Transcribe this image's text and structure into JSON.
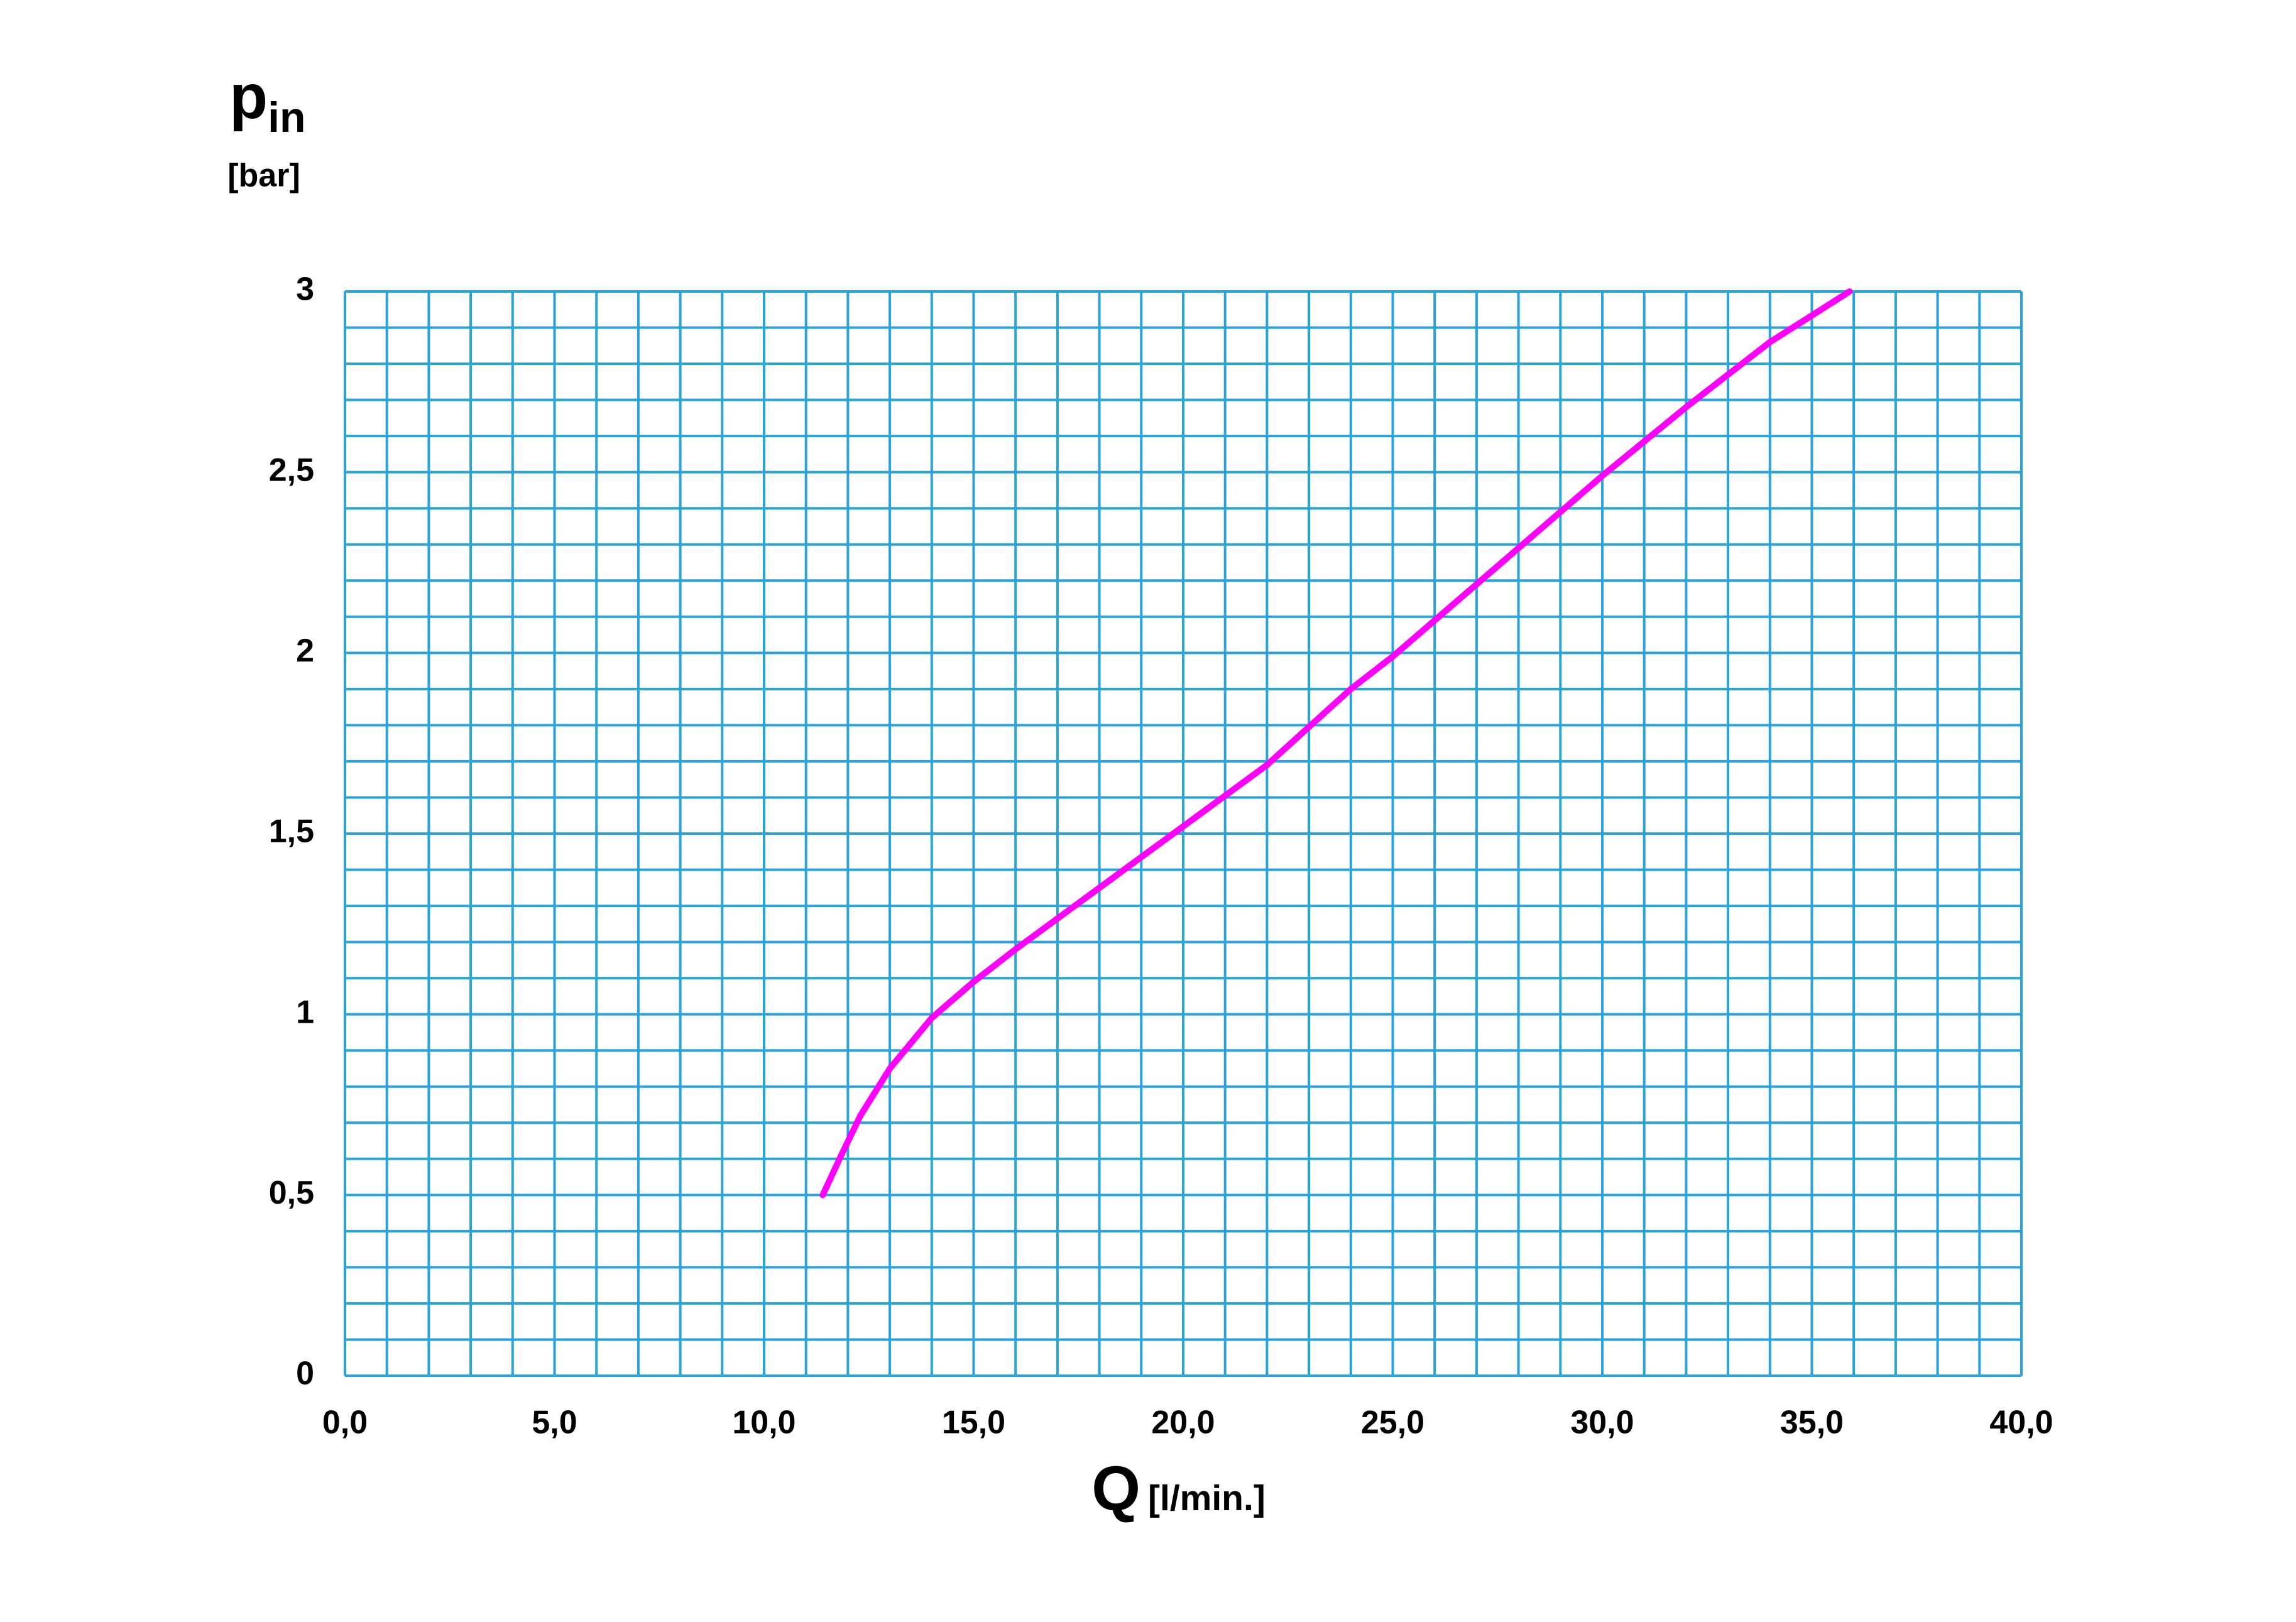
{
  "chart_data": {
    "type": "line",
    "ylabel": "p",
    "ylabel_sub": "in",
    "yunit": "[bar]",
    "xlabel": "Q",
    "xunit": "[l/min.]",
    "xlim": [
      0,
      40
    ],
    "ylim": [
      0,
      3
    ],
    "xticks": [
      {
        "value": 0,
        "label": "0,0"
      },
      {
        "value": 5,
        "label": "5,0"
      },
      {
        "value": 10,
        "label": "10,0"
      },
      {
        "value": 15,
        "label": "15,0"
      },
      {
        "value": 20,
        "label": "20,0"
      },
      {
        "value": 25,
        "label": "25,0"
      },
      {
        "value": 30,
        "label": "30,0"
      },
      {
        "value": 35,
        "label": "35,0"
      },
      {
        "value": 40,
        "label": "40,0"
      }
    ],
    "yticks": [
      0,
      {
        "value": 0.5,
        "label": "0,5"
      },
      1,
      {
        "value": 1.5,
        "label": "1,5"
      },
      2,
      {
        "value": 2.5,
        "label": "2,5"
      },
      3
    ],
    "grid": true,
    "grid_color": "#29a3d9",
    "grid_step": {
      "x": 1,
      "y": 0.1
    },
    "series": [
      {
        "color": "#ff00ff",
        "x": [
          11.4,
          11.8,
          12.3,
          13,
          14,
          15,
          16,
          18,
          20,
          22,
          24,
          25,
          26,
          28,
          30,
          32,
          34,
          35.9
        ],
        "values": [
          0.5,
          0.6,
          0.72,
          0.85,
          0.99,
          1.09,
          1.18,
          1.35,
          1.52,
          1.69,
          1.9,
          1.99,
          2.09,
          2.29,
          2.49,
          2.68,
          2.86,
          3.0
        ]
      }
    ]
  }
}
